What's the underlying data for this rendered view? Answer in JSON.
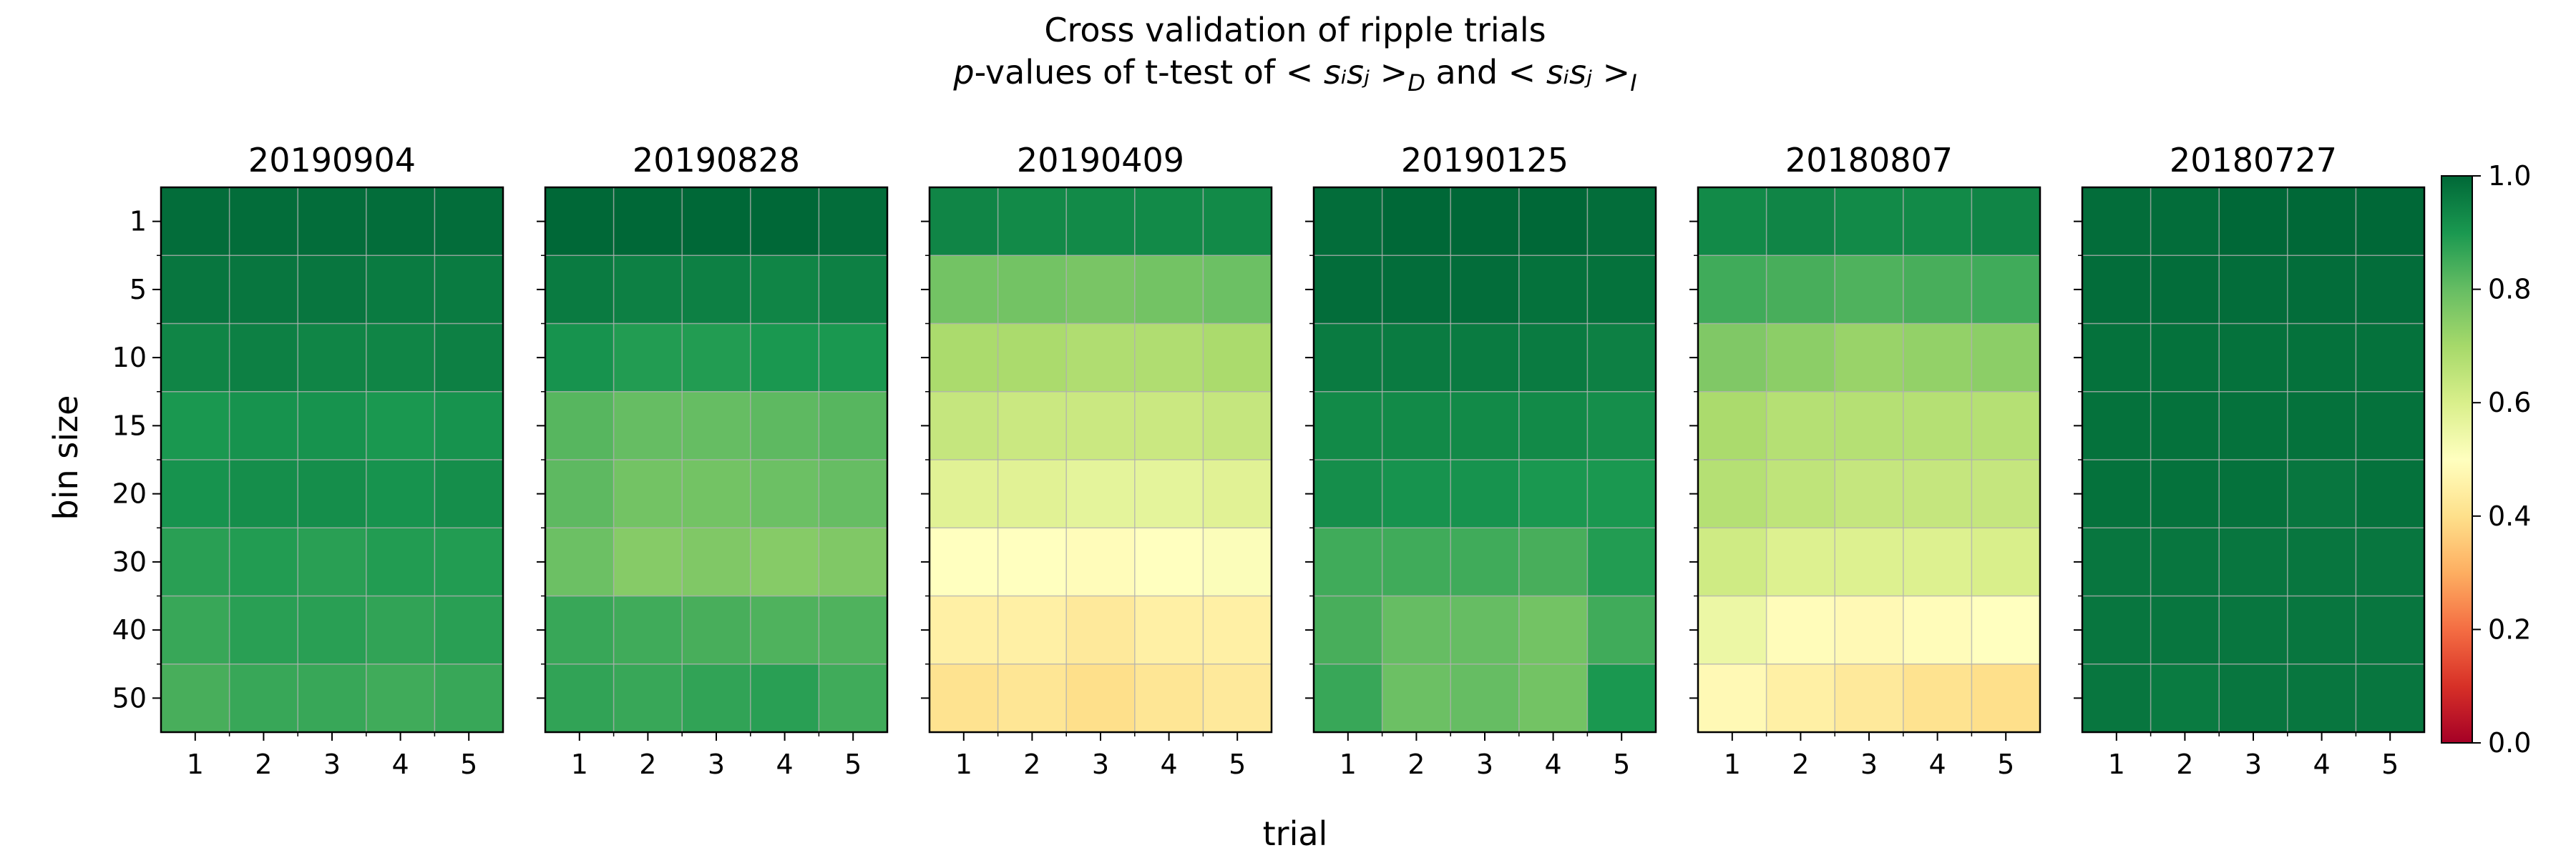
{
  "chart_data": {
    "type": "heatmap",
    "title_line1": "Cross validation of ripple trials",
    "title_line2": {
      "p": "p",
      "suffix": "-values of t-test of ",
      "expr_d": "< sᵢsⱼ >",
      "sub_d": "D",
      "and": " and ",
      "expr_i": "< sᵢsⱼ >",
      "sub_i": "I"
    },
    "xlabel": "trial",
    "ylabel": "bin size",
    "x_ticks": [
      "1",
      "2",
      "3",
      "4",
      "5"
    ],
    "y_ticks": [
      "1",
      "5",
      "10",
      "15",
      "20",
      "30",
      "40",
      "50"
    ],
    "colorbar": {
      "colormap": "RdYlGn",
      "range": [
        0.0,
        1.0
      ],
      "ticks": [
        "0.0",
        "0.2",
        "0.4",
        "0.6",
        "0.8",
        "1.0"
      ]
    },
    "panels": [
      {
        "title": "20190904",
        "values": [
          [
            0.99,
            0.99,
            0.99,
            0.99,
            0.99
          ],
          [
            0.97,
            0.97,
            0.97,
            0.96,
            0.96
          ],
          [
            0.94,
            0.95,
            0.94,
            0.94,
            0.95
          ],
          [
            0.9,
            0.91,
            0.91,
            0.9,
            0.91
          ],
          [
            0.91,
            0.92,
            0.92,
            0.91,
            0.92
          ],
          [
            0.88,
            0.89,
            0.88,
            0.89,
            0.89
          ],
          [
            0.86,
            0.88,
            0.88,
            0.87,
            0.88
          ],
          [
            0.84,
            0.86,
            0.86,
            0.85,
            0.86
          ]
        ]
      },
      {
        "title": "20190828",
        "values": [
          [
            1.0,
            1.0,
            1.0,
            1.0,
            0.99
          ],
          [
            0.96,
            0.95,
            0.95,
            0.94,
            0.95
          ],
          [
            0.91,
            0.89,
            0.89,
            0.9,
            0.9
          ],
          [
            0.82,
            0.8,
            0.8,
            0.81,
            0.82
          ],
          [
            0.81,
            0.78,
            0.78,
            0.79,
            0.8
          ],
          [
            0.79,
            0.75,
            0.76,
            0.75,
            0.76
          ],
          [
            0.86,
            0.85,
            0.84,
            0.83,
            0.83
          ],
          [
            0.87,
            0.86,
            0.87,
            0.88,
            0.85
          ]
        ]
      },
      {
        "title": "20190409",
        "values": [
          [
            0.94,
            0.93,
            0.93,
            0.93,
            0.93
          ],
          [
            0.78,
            0.78,
            0.77,
            0.78,
            0.79
          ],
          [
            0.69,
            0.69,
            0.68,
            0.68,
            0.69
          ],
          [
            0.64,
            0.63,
            0.63,
            0.63,
            0.64
          ],
          [
            0.58,
            0.58,
            0.57,
            0.57,
            0.58
          ],
          [
            0.5,
            0.5,
            0.49,
            0.5,
            0.51
          ],
          [
            0.45,
            0.45,
            0.43,
            0.45,
            0.45
          ],
          [
            0.41,
            0.42,
            0.4,
            0.42,
            0.43
          ]
        ]
      },
      {
        "title": "20190125",
        "values": [
          [
            0.99,
            1.0,
            1.0,
            1.0,
            0.99
          ],
          [
            0.99,
            0.99,
            0.99,
            0.98,
            0.98
          ],
          [
            0.96,
            0.96,
            0.96,
            0.96,
            0.95
          ],
          [
            0.93,
            0.93,
            0.93,
            0.93,
            0.92
          ],
          [
            0.92,
            0.91,
            0.91,
            0.9,
            0.9
          ],
          [
            0.85,
            0.85,
            0.85,
            0.84,
            0.89
          ],
          [
            0.84,
            0.8,
            0.8,
            0.78,
            0.85
          ],
          [
            0.86,
            0.79,
            0.8,
            0.78,
            0.9
          ]
        ]
      },
      {
        "title": "20180807",
        "values": [
          [
            0.93,
            0.94,
            0.93,
            0.93,
            0.94
          ],
          [
            0.85,
            0.84,
            0.83,
            0.84,
            0.85
          ],
          [
            0.76,
            0.74,
            0.72,
            0.73,
            0.74
          ],
          [
            0.69,
            0.67,
            0.67,
            0.67,
            0.67
          ],
          [
            0.67,
            0.65,
            0.64,
            0.64,
            0.64
          ],
          [
            0.62,
            0.59,
            0.59,
            0.59,
            0.6
          ],
          [
            0.55,
            0.49,
            0.48,
            0.49,
            0.5
          ],
          [
            0.48,
            0.45,
            0.43,
            0.41,
            0.4
          ]
        ]
      },
      {
        "title": "20180727",
        "values": [
          [
            0.99,
            0.99,
            1.0,
            1.0,
            1.0
          ],
          [
            0.99,
            0.99,
            0.99,
            0.99,
            0.99
          ],
          [
            0.98,
            0.98,
            0.98,
            0.98,
            0.98
          ],
          [
            0.98,
            0.98,
            0.98,
            0.98,
            0.98
          ],
          [
            0.98,
            0.98,
            0.98,
            0.97,
            0.98
          ],
          [
            0.97,
            0.97,
            0.97,
            0.97,
            0.97
          ],
          [
            0.97,
            0.97,
            0.97,
            0.97,
            0.97
          ],
          [
            0.97,
            0.96,
            0.97,
            0.97,
            0.97
          ]
        ]
      }
    ]
  }
}
